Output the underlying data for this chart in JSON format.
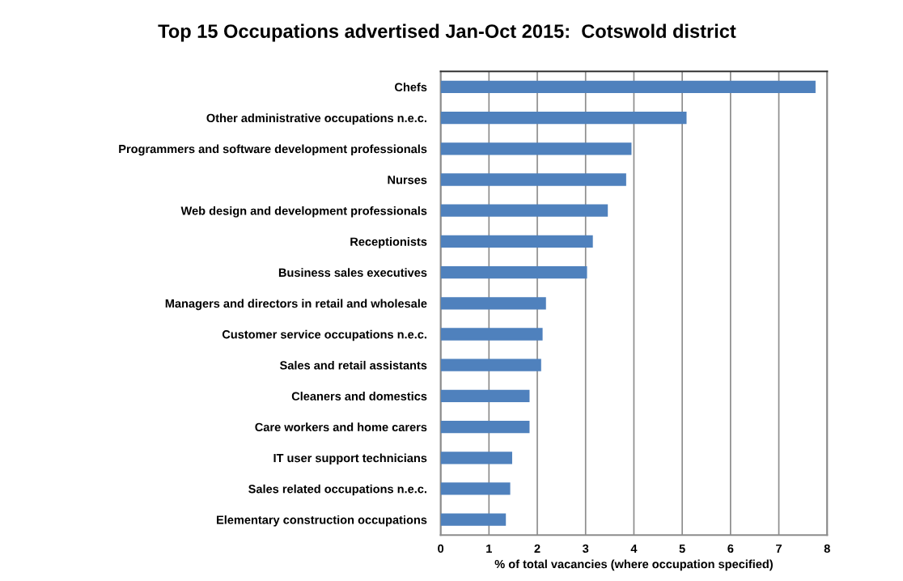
{
  "chart_data": {
    "type": "bar",
    "orientation": "horizontal",
    "title": "Top 15 Occupations advertised Jan-Oct 2015:  Cotswold district",
    "xlabel": "% of total vacancies (where occupation specified)",
    "categories": [
      "Chefs",
      "Other administrative occupations n.e.c.",
      "Programmers and software development professionals",
      "Nurses",
      "Web design and development professionals",
      "Receptionists",
      "Business sales executives",
      "Managers and directors in retail and wholesale",
      "Customer service occupations n.e.c.",
      "Sales and retail assistants",
      "Cleaners and domestics",
      "Care workers and home carers",
      "IT user support technicians",
      "Sales related occupations n.e.c.",
      "Elementary construction occupations"
    ],
    "values": [
      7.76,
      5.09,
      3.95,
      3.84,
      3.46,
      3.15,
      3.03,
      2.18,
      2.11,
      2.08,
      1.84,
      1.84,
      1.48,
      1.44,
      1.35
    ],
    "color": "#4f81bd",
    "xlim": [
      0,
      8
    ],
    "xticks": [
      0,
      1,
      2,
      3,
      4,
      5,
      6,
      7,
      8
    ],
    "grid": "x"
  }
}
